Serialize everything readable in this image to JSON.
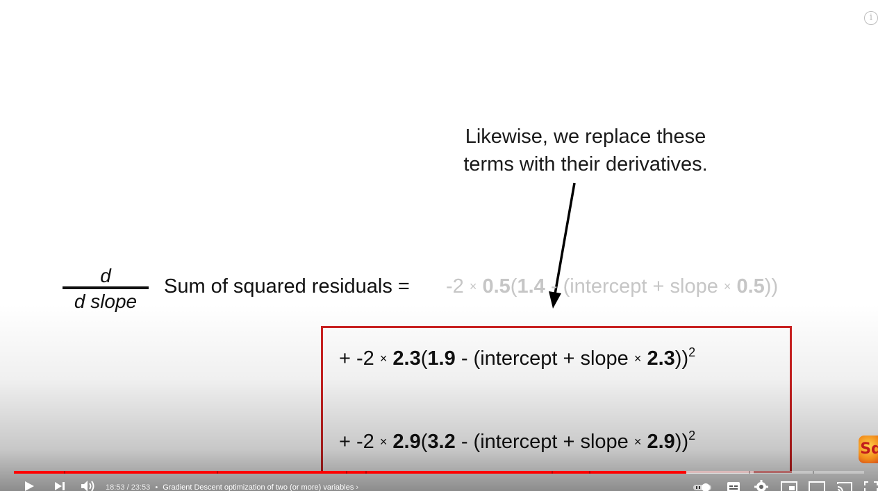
{
  "slide": {
    "caption_line1": "Likewise, we replace these",
    "caption_line2": "terms with their derivatives.",
    "fraction_numerator": "d",
    "fraction_denominator": "d slope",
    "equation_lhs": "Sum of squared residuals =",
    "term1": {
      "prefix": "-2",
      "times": "×",
      "coef": "0.5",
      "observed": "1.4",
      "minus": "-",
      "inner": "(intercept + slope",
      "x_value": "0.5",
      "close": "))"
    },
    "term2": {
      "prefix": "+ -2",
      "times": "×",
      "coef": "2.3",
      "observed": "1.9",
      "minus": "-",
      "inner": "(intercept + slope",
      "x_value": "2.3",
      "close": "))",
      "exponent": "2"
    },
    "term3": {
      "prefix": "+ -2",
      "times": "×",
      "coef": "2.9",
      "observed": "3.2",
      "minus": "-",
      "inner": "(intercept + slope",
      "x_value": "2.9",
      "close": "))",
      "exponent": "2"
    },
    "highlight_color": "#cc2222",
    "faded_text_color": "#c6c6c6"
  },
  "player": {
    "time_current": "18:53",
    "time_separator": "/",
    "time_total": "23:53",
    "bullet": "•",
    "chapter_title": "Gradient Descent optimization of two (or more) variables",
    "chapter_chevron": "›",
    "progress_played_fraction": 0.791,
    "progress_loaded_fraction": 0.87,
    "progress_color": "#ff0000",
    "logo_text": "Sq",
    "icons": {
      "play": "play-icon",
      "next": "next-icon",
      "volume": "volume-icon",
      "autoplay": "autoplay-toggle-icon",
      "subtitles": "subtitles-icon",
      "settings": "gear-icon",
      "miniplayer": "miniplayer-icon",
      "theater": "theater-mode-icon",
      "cast": "cast-icon",
      "fullscreen": "fullscreen-icon",
      "info": "info-icon"
    }
  }
}
